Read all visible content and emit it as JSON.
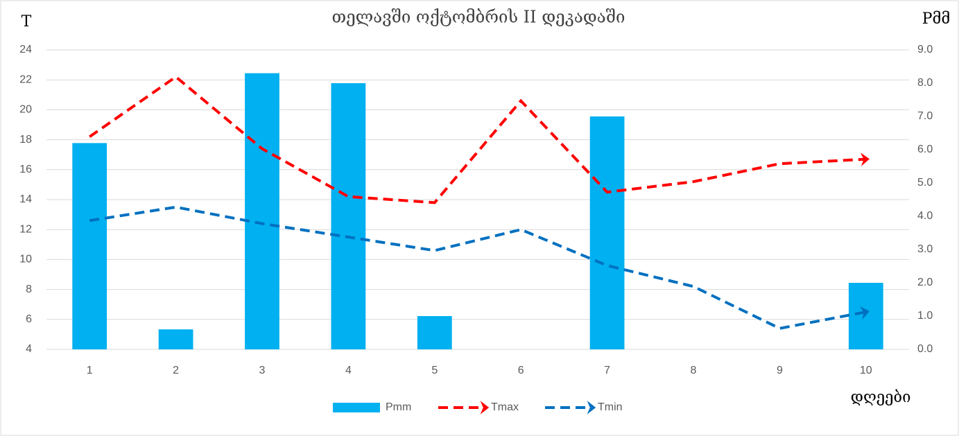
{
  "chart_data": {
    "type": "bar",
    "title": "თელავში ოქტომბრის II დეკადაში",
    "y_label": "T",
    "y2_label": "Pმმ",
    "x_label": "დღეები",
    "categories": [
      "1",
      "2",
      "3",
      "4",
      "5",
      "6",
      "7",
      "8",
      "9",
      "10"
    ],
    "series": [
      {
        "name": "Pmm",
        "type": "bar",
        "axis": "y2",
        "color": "#00b0f0",
        "values": [
          6.2,
          0.6,
          8.3,
          8.0,
          1.0,
          0,
          7.0,
          0,
          0,
          2.0
        ]
      },
      {
        "name": "Tmax",
        "type": "line",
        "axis": "y",
        "color": "#ff0000",
        "values": [
          18.2,
          22.2,
          17.4,
          14.2,
          13.8,
          20.6,
          14.5,
          15.2,
          16.4,
          16.7
        ]
      },
      {
        "name": "Tmin",
        "type": "line",
        "axis": "y",
        "color": "#0070c0",
        "values": [
          12.6,
          13.5,
          12.4,
          11.5,
          10.6,
          12.0,
          9.6,
          8.2,
          5.4,
          6.5
        ]
      }
    ],
    "ylim": [
      4,
      24
    ],
    "yticks": [
      4,
      6,
      8,
      10,
      12,
      14,
      16,
      18,
      20,
      22,
      24
    ],
    "y2lim": [
      0,
      9
    ],
    "y2ticks": [
      {
        "value": 0,
        "label": "0.0"
      },
      {
        "value": 1,
        "label": "1.0"
      },
      {
        "value": 2,
        "label": "2.0"
      },
      {
        "value": 3,
        "label": "3.0"
      },
      {
        "value": 4,
        "label": "4.0"
      },
      {
        "value": 5,
        "label": "5.0"
      },
      {
        "value": 6,
        "label": "6.0"
      },
      {
        "value": 7,
        "label": "7.0"
      },
      {
        "value": 8,
        "label": "8.0"
      },
      {
        "value": 9,
        "label": "9.0"
      }
    ],
    "grid": true,
    "legend": "bottom"
  }
}
